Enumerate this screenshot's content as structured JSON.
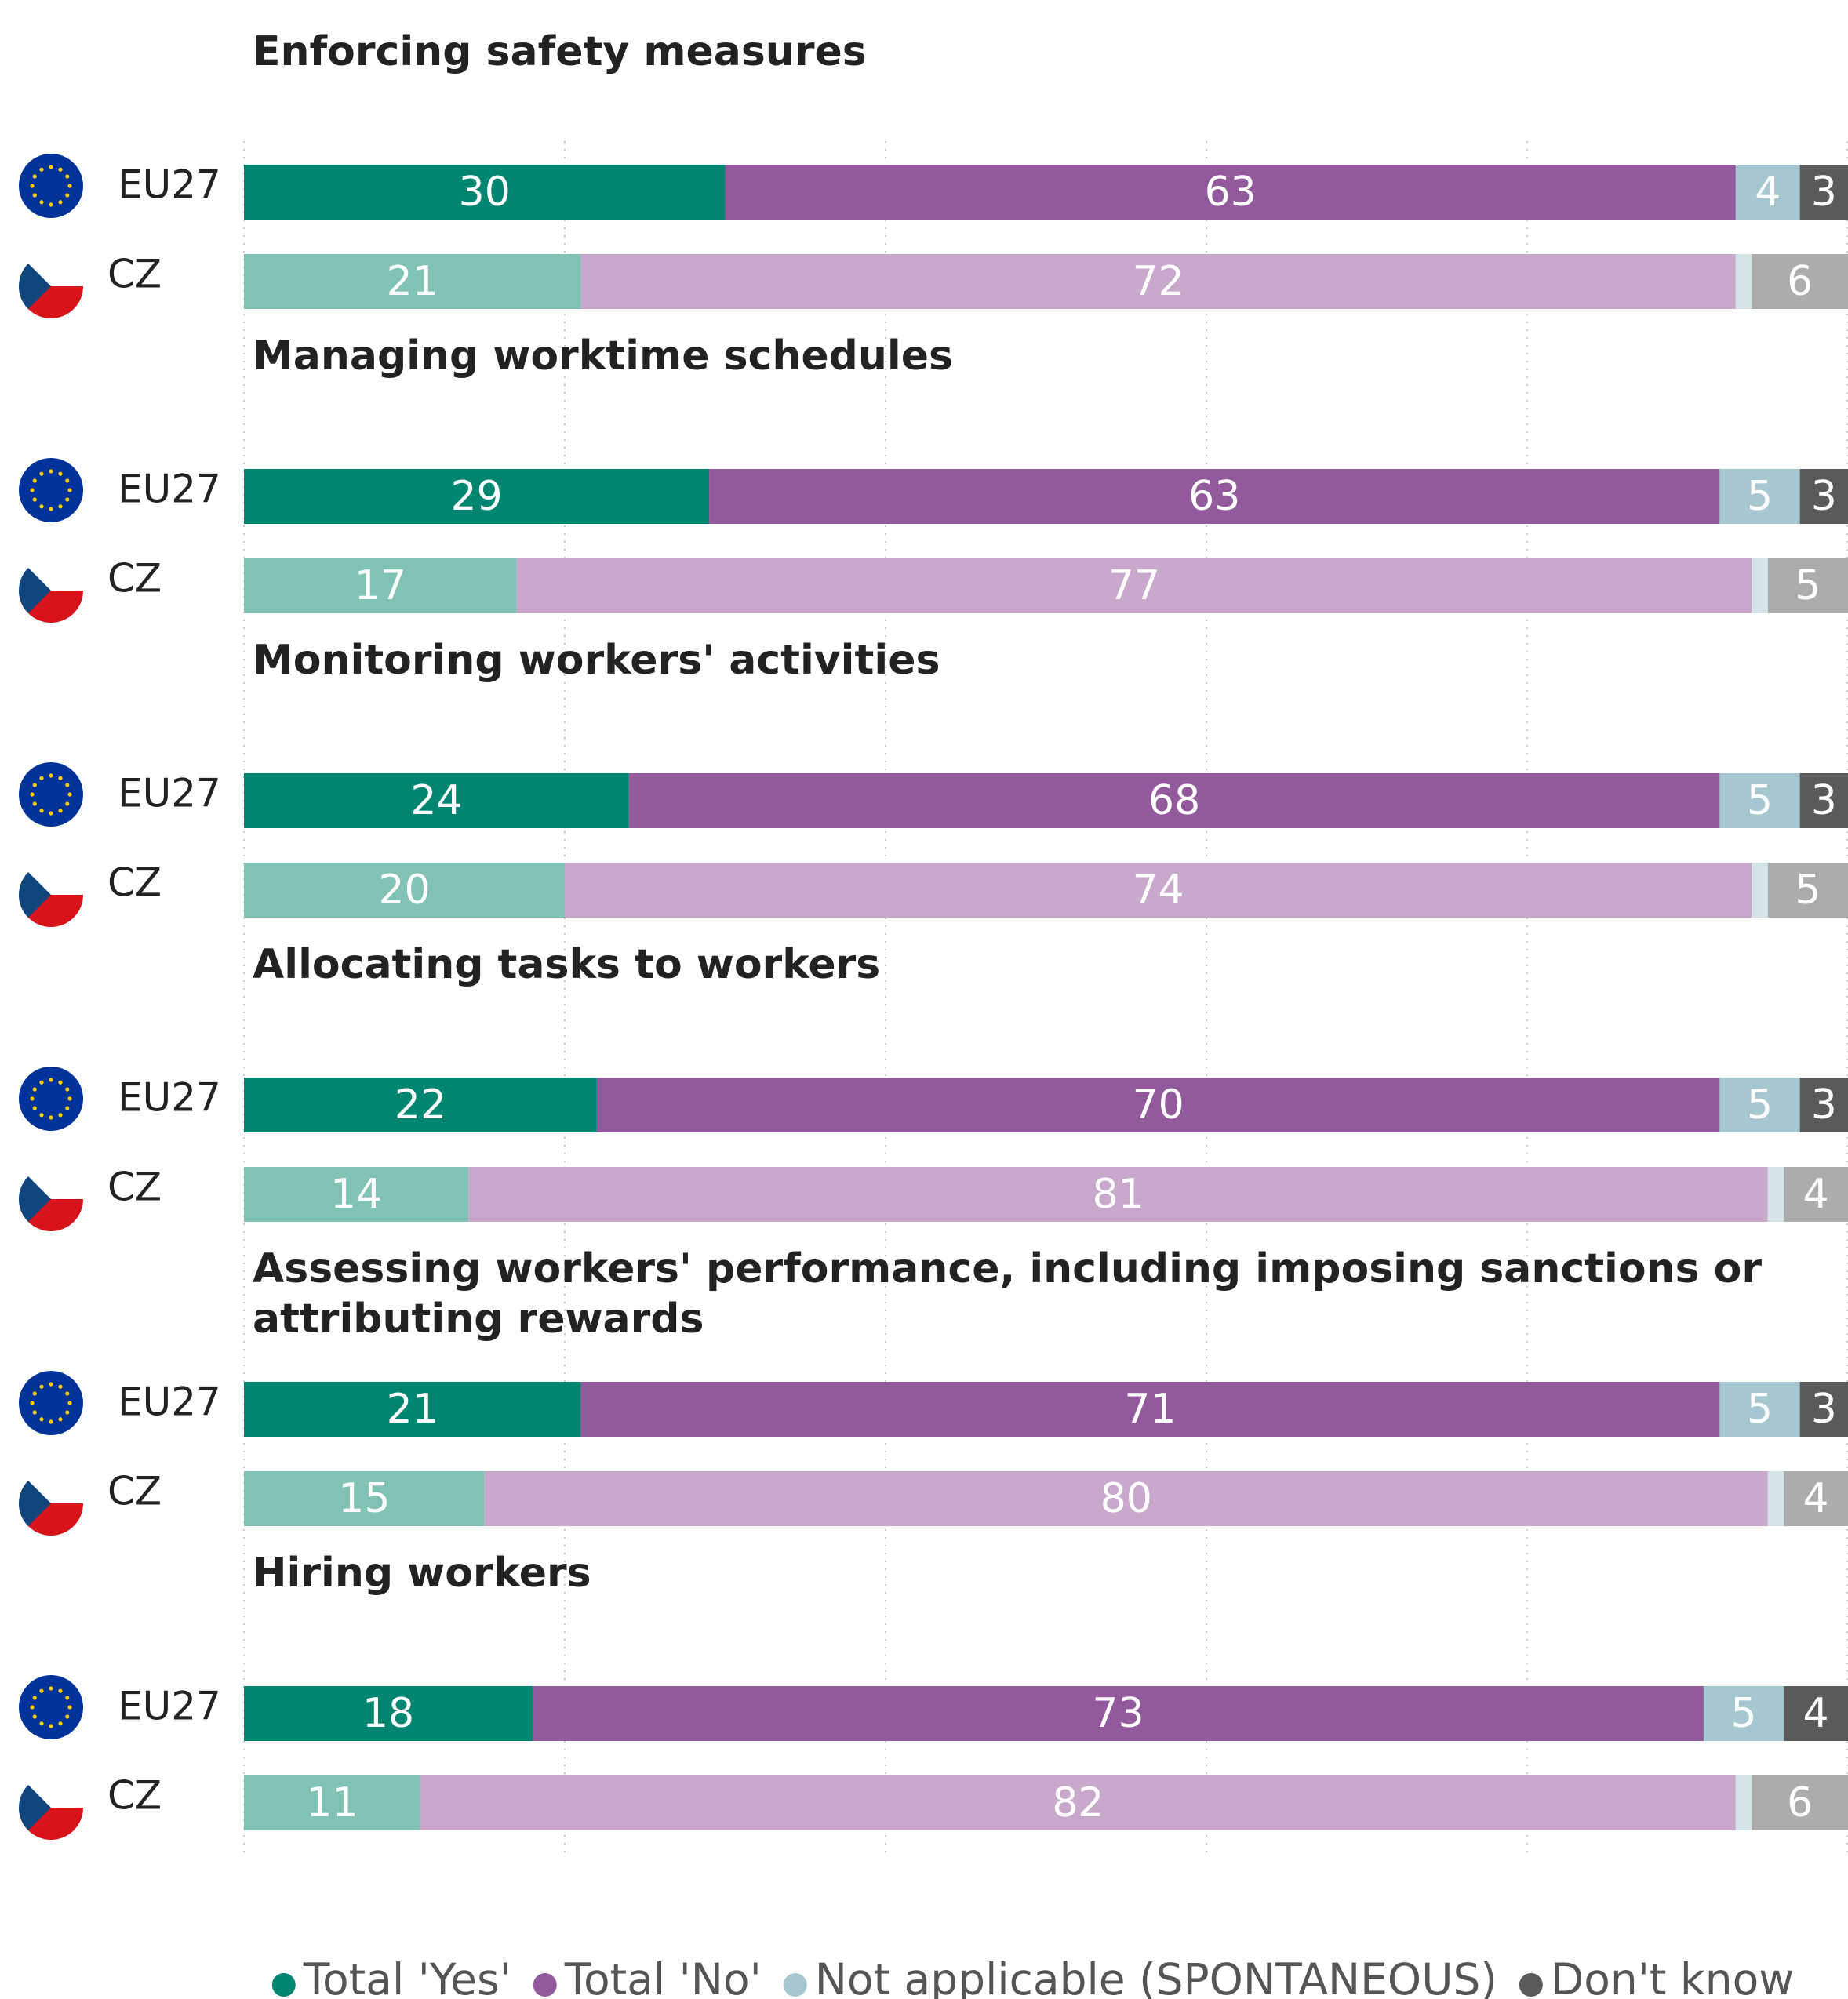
{
  "chart_data": {
    "type": "bar",
    "orientation": "horizontal",
    "stacked": true,
    "group_titles": [
      "Enforcing safety measures",
      "Managing worktime schedules",
      "Monitoring workers' activities",
      "Allocating tasks to workers",
      "Assessing workers' performance, including imposing sanctions or attributing rewards",
      "Hiring workers"
    ],
    "categories": [
      "EU27",
      "CZ",
      "EU27",
      "CZ",
      "EU27",
      "CZ",
      "EU27",
      "CZ",
      "EU27",
      "CZ",
      "EU27",
      "CZ"
    ],
    "series": [
      {
        "name": "Total 'Yes'",
        "color": "#008570",
        "color_cz": "#80c2b4",
        "values": [
          30,
          21,
          29,
          17,
          24,
          20,
          22,
          14,
          21,
          15,
          18,
          11
        ]
      },
      {
        "name": "Total 'No'",
        "color": "#93599d",
        "color_cz": "#c8a9cc",
        "values": [
          63,
          72,
          63,
          77,
          68,
          74,
          70,
          81,
          71,
          80,
          73,
          82
        ]
      },
      {
        "name": "Not applicable (SPONTANEOUS)",
        "color": "#a5c8d0",
        "color_cz": "#d2e4e8",
        "values": [
          4,
          1,
          5,
          1,
          5,
          1,
          5,
          1,
          5,
          1,
          5,
          1
        ]
      },
      {
        "name": "Don't know",
        "color": "#5a5a5a",
        "color_cz": "#acacac",
        "values": [
          3,
          6,
          3,
          5,
          3,
          5,
          3,
          4,
          3,
          4,
          4,
          6
        ]
      }
    ],
    "xlim": [
      0,
      100
    ],
    "xticks": [
      0,
      20,
      40,
      60,
      80,
      100
    ],
    "grid": true,
    "legend": "bottom"
  }
}
